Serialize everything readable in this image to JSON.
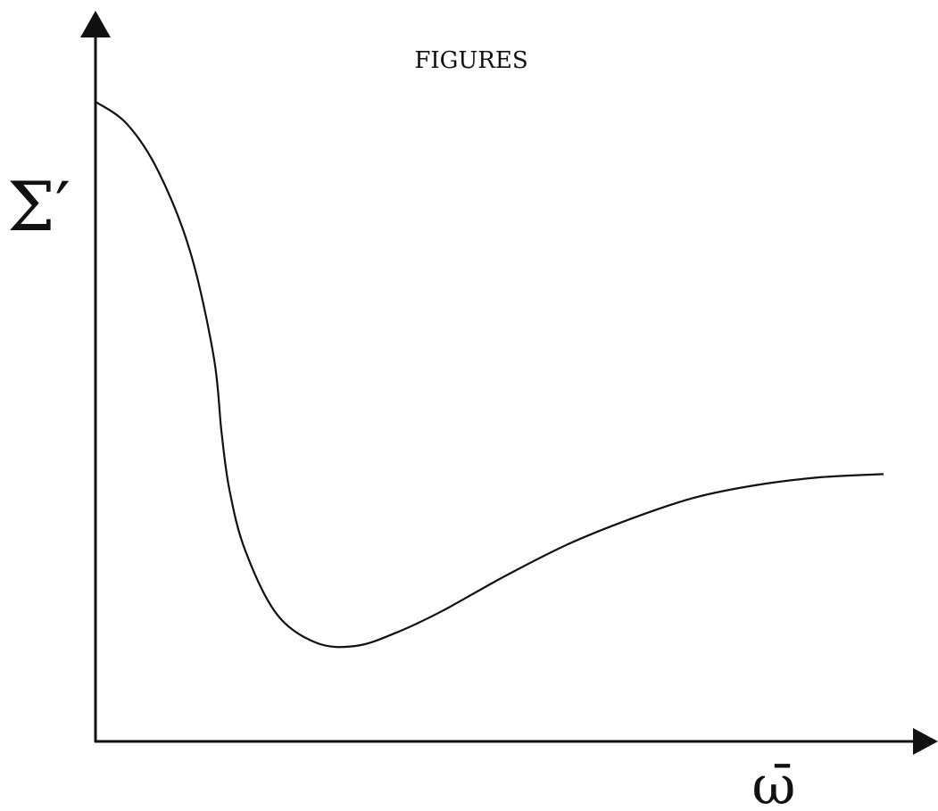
{
  "page_header": "FIGURES",
  "chart_data": {
    "type": "line",
    "title": "",
    "xlabel": "ω̄",
    "ylabel": "Σ′",
    "xlim": [
      0,
      1
    ],
    "ylim": [
      0,
      1
    ],
    "grid": false,
    "legend": "none",
    "axis_ticks": "none",
    "series": [
      {
        "points": [
          [
            0.0,
            1.0
          ],
          [
            0.04,
            0.965
          ],
          [
            0.08,
            0.89
          ],
          [
            0.12,
            0.765
          ],
          [
            0.15,
            0.6
          ],
          [
            0.16,
            0.48
          ],
          [
            0.17,
            0.39
          ],
          [
            0.19,
            0.295
          ],
          [
            0.23,
            0.195
          ],
          [
            0.28,
            0.15
          ],
          [
            0.33,
            0.145
          ],
          [
            0.38,
            0.165
          ],
          [
            0.44,
            0.2
          ],
          [
            0.52,
            0.255
          ],
          [
            0.6,
            0.305
          ],
          [
            0.68,
            0.345
          ],
          [
            0.76,
            0.378
          ],
          [
            0.84,
            0.398
          ],
          [
            0.92,
            0.41
          ],
          [
            1.0,
            0.415
          ]
        ]
      }
    ],
    "colors": {
      "line": "#111111",
      "axes": "#111111",
      "background": "#ffffff"
    }
  }
}
